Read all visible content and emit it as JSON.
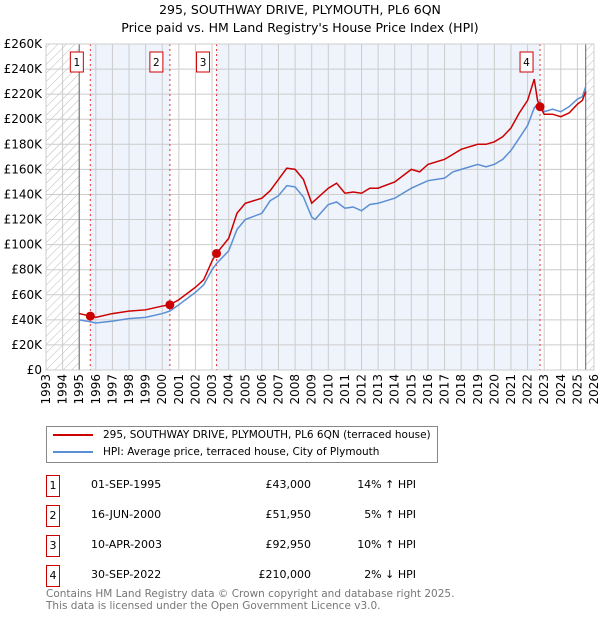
{
  "title": "295, SOUTHWAY DRIVE, PLYMOUTH, PL6 6QN",
  "subtitle": "Price paid vs. HM Land Registry's House Price Index (HPI)",
  "chart_data": {
    "type": "line",
    "ylim": [
      0,
      260000
    ],
    "xlim": [
      1993,
      2026
    ],
    "yticks": [
      {
        "v": 0,
        "l": "£0"
      },
      {
        "v": 20000,
        "l": "£20K"
      },
      {
        "v": 40000,
        "l": "£40K"
      },
      {
        "v": 60000,
        "l": "£60K"
      },
      {
        "v": 80000,
        "l": "£80K"
      },
      {
        "v": 100000,
        "l": "£100K"
      },
      {
        "v": 120000,
        "l": "£120K"
      },
      {
        "v": 140000,
        "l": "£140K"
      },
      {
        "v": 160000,
        "l": "£160K"
      },
      {
        "v": 180000,
        "l": "£180K"
      },
      {
        "v": 200000,
        "l": "£200K"
      },
      {
        "v": 220000,
        "l": "£220K"
      },
      {
        "v": 240000,
        "l": "£240K"
      },
      {
        "v": 260000,
        "l": "£260K"
      }
    ],
    "xticks": [
      "1993",
      "1994",
      "1995",
      "1996",
      "1997",
      "1998",
      "1999",
      "2000",
      "2001",
      "2002",
      "2003",
      "2004",
      "2005",
      "2006",
      "2007",
      "2008",
      "2009",
      "2010",
      "2011",
      "2012",
      "2013",
      "2014",
      "2015",
      "2016",
      "2017",
      "2018",
      "2019",
      "2020",
      "2021",
      "2022",
      "2023",
      "2024",
      "2025",
      "2026"
    ],
    "data_range": [
      1995,
      2025.5
    ],
    "series": [
      {
        "name": "295, SOUTHWAY DRIVE, PLYMOUTH, PL6 6QN (terraced house)",
        "color": "#cc0000",
        "x": [
          1995,
          1995.67,
          1996,
          1997,
          1998,
          1999,
          2000,
          2000.46,
          2001,
          2002,
          2002.5,
          2003,
          2003.27,
          2004,
          2004.5,
          2005,
          2006,
          2006.5,
          2007,
          2007.5,
          2008,
          2008.5,
          2009,
          2010,
          2010.5,
          2011,
          2011.5,
          2012,
          2012.5,
          2013,
          2014,
          2015,
          2015.5,
          2016,
          2017,
          2017.5,
          2018,
          2019,
          2019.5,
          2020,
          2020.5,
          2021,
          2021.5,
          2022,
          2022.4,
          2022.6,
          2022.75,
          2023,
          2023.5,
          2024,
          2024.5,
          2025,
          2025.3,
          2025.5
        ],
        "y": [
          45000,
          43000,
          42000,
          45000,
          47000,
          48000,
          51000,
          52000,
          56000,
          66000,
          72000,
          87000,
          93000,
          105000,
          125000,
          133000,
          137000,
          143000,
          152000,
          161000,
          160000,
          152000,
          133000,
          145000,
          149000,
          141000,
          142000,
          141000,
          145000,
          145000,
          150000,
          160000,
          158000,
          164000,
          168000,
          172000,
          176000,
          180000,
          180000,
          182000,
          186000,
          193000,
          205000,
          215000,
          232000,
          215000,
          210000,
          204000,
          204000,
          202000,
          205000,
          212000,
          215000,
          222000
        ]
      },
      {
        "name": "HPI: Average price, terraced house, City of Plymouth",
        "color": "#5b8fd4",
        "x": [
          1995,
          1995.67,
          1996,
          1997,
          1998,
          1999,
          2000,
          2000.46,
          2001,
          2002,
          2002.5,
          2003,
          2003.27,
          2004,
          2004.5,
          2005,
          2006,
          2006.5,
          2007,
          2007.5,
          2008,
          2008.5,
          2009,
          2009.2,
          2010,
          2010.5,
          2011,
          2011.5,
          2012,
          2012.5,
          2013,
          2014,
          2015,
          2015.5,
          2016,
          2017,
          2017.5,
          2018,
          2019,
          2019.5,
          2020,
          2020.5,
          2021,
          2021.5,
          2022,
          2022.4,
          2022.75,
          2023,
          2023.5,
          2024,
          2024.5,
          2025,
          2025.3,
          2025.5
        ],
        "y": [
          40000,
          38500,
          37500,
          39000,
          41000,
          42000,
          45000,
          47000,
          52000,
          62000,
          68000,
          80000,
          85000,
          95000,
          112000,
          120000,
          125000,
          135000,
          139000,
          147000,
          146000,
          138000,
          122000,
          120000,
          132000,
          134000,
          129000,
          130000,
          127000,
          132000,
          133000,
          137000,
          145000,
          148000,
          151000,
          153000,
          158000,
          160000,
          164000,
          162000,
          164000,
          168000,
          175000,
          185000,
          195000,
          209000,
          214000,
          206000,
          208000,
          206000,
          210000,
          216000,
          218000,
          226000
        ]
      }
    ],
    "sales": [
      {
        "n": "1",
        "x": 1995.67,
        "y": 43000,
        "date": "01-SEP-1995",
        "price": "£43,000",
        "hpi": "14% ↑ HPI"
      },
      {
        "n": "2",
        "x": 2000.46,
        "y": 51950,
        "date": "16-JUN-2000",
        "price": "£51,950",
        "hpi": "5% ↑ HPI"
      },
      {
        "n": "3",
        "x": 2003.27,
        "y": 92950,
        "date": "10-APR-2003",
        "price": "£92,950",
        "hpi": "10% ↑ HPI"
      },
      {
        "n": "4",
        "x": 2022.75,
        "y": 210000,
        "date": "30-SEP-2022",
        "price": "£210,000",
        "hpi": "2% ↓ HPI"
      }
    ]
  },
  "footer": {
    "line1": "Contains HM Land Registry data © Crown copyright and database right 2025.",
    "line2": "This data is licensed under the Open Government Licence v3.0."
  }
}
